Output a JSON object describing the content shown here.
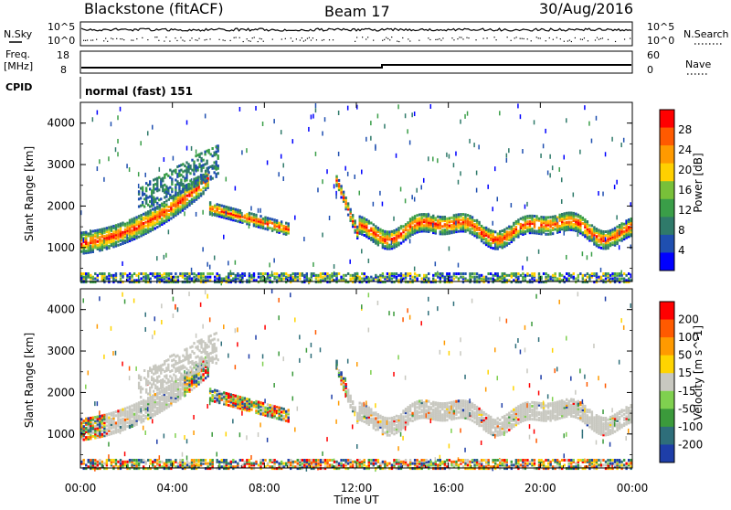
{
  "header": {
    "station": "Blackstone (fitACF)",
    "beam": "Beam 17",
    "date": "30/Aug/2016"
  },
  "top_panels": {
    "nsky_label": "N.Sky",
    "nsearch_label": "N.Search",
    "nsky_ticks": [
      "10^5",
      "10^0"
    ],
    "nsearch_ticks": [
      "10^5",
      "10^0"
    ],
    "freq_label": "Freq.",
    "freq_unit": "[MHz]",
    "freq_ticks": [
      "18",
      "8"
    ],
    "nave_label": "Nave",
    "nave_ticks": [
      "60",
      "0"
    ],
    "cpid_label": "CPID",
    "cpid_value": "normal (fast) 151"
  },
  "colors": {
    "power_scale": [
      "#0000ff",
      "#1f4fb0",
      "#2f7a6a",
      "#3a9e48",
      "#78c039",
      "#ffd000",
      "#ff9a00",
      "#ff5a00",
      "#ff0000"
    ],
    "velocity_scale": [
      "#1e3ea8",
      "#2e6e7a",
      "#3b9a3b",
      "#7fd04f",
      "#c8c8c0",
      "#ffd400",
      "#ff9a00",
      "#ff5a00",
      "#ff0000"
    ]
  },
  "chart_data": [
    {
      "type": "heatmap",
      "name": "power",
      "xlabel": "",
      "ylabel": "Slant Range [km]",
      "x_ticks": [
        "00:00",
        "04:00",
        "08:00",
        "12:00",
        "16:00",
        "20:00",
        "00:00"
      ],
      "xlim": [
        0,
        24
      ],
      "ylim": [
        180,
        4500
      ],
      "y_ticks": [
        1000,
        2000,
        3000,
        4000
      ],
      "colorbar": {
        "label": "Power [dB]",
        "ticks": [
          "28",
          "24",
          "20",
          "16",
          "12",
          "8",
          "4"
        ],
        "range": [
          0,
          30
        ]
      }
    },
    {
      "type": "heatmap",
      "name": "velocity",
      "xlabel": "Time UT",
      "ylabel": "Slant Range [km]",
      "x_ticks": [
        "00:00",
        "04:00",
        "08:00",
        "12:00",
        "16:00",
        "20:00",
        "00:00"
      ],
      "xlim": [
        0,
        24
      ],
      "ylim": [
        180,
        4500
      ],
      "y_ticks": [
        1000,
        2000,
        3000,
        4000
      ],
      "colorbar": {
        "label": "Velocity [m s^-1]",
        "ticks": [
          "200",
          "100",
          "50",
          "15",
          "-15",
          "-50",
          "-100",
          "-200"
        ],
        "range": [
          -250,
          250
        ]
      }
    }
  ]
}
